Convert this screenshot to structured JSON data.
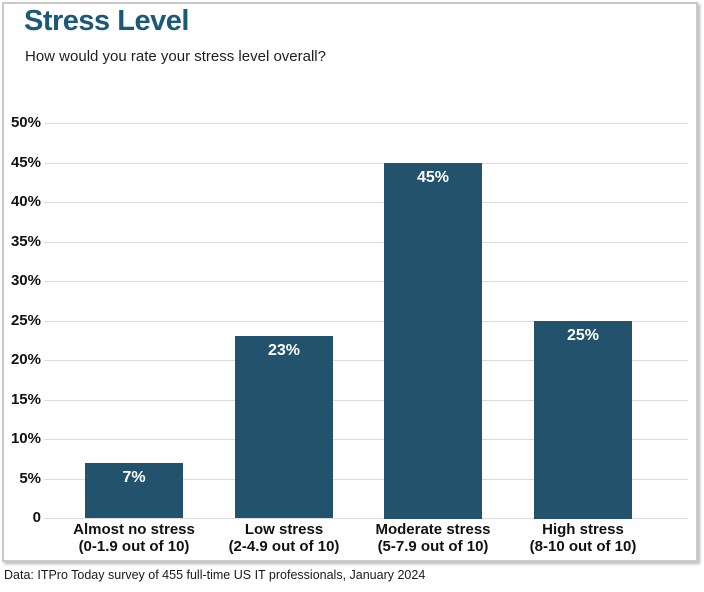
{
  "header": {
    "title": "Stress Level",
    "subtitle": "How would you rate your stress level overall?"
  },
  "footer": {
    "source": "Data: ITPro Today survey of 455 full-time US IT professionals, January 2024"
  },
  "colors": {
    "bar": "#23526D",
    "title": "#1C5878",
    "gridline": "#DCDCDC",
    "axis_text": "#111111",
    "bar_value_text": "#FFFFFF",
    "card_border": "#C9C9C9"
  },
  "chart_data": {
    "type": "bar",
    "title": "Stress Level",
    "subtitle": "How would you rate your stress level overall?",
    "categories": [
      {
        "line1": "Almost no stress",
        "line2": "(0-1.9 out of 10)"
      },
      {
        "line1": "Low stress",
        "line2": "(2-4.9 out of 10)"
      },
      {
        "line1": "Moderate stress",
        "line2": "(5-7.9 out of 10)"
      },
      {
        "line1": "High stress",
        "line2": "(8-10 out of 10)"
      }
    ],
    "values": [
      7,
      23,
      45,
      25
    ],
    "bar_labels": [
      "7%",
      "23%",
      "45%",
      "25%"
    ],
    "ytick_values": [
      50,
      45,
      40,
      35,
      30,
      25,
      20,
      15,
      10,
      5,
      0
    ],
    "ytick_labels": [
      "50%",
      "45%",
      "40%",
      "35%",
      "30%",
      "25%",
      "20%",
      "15%",
      "10%",
      "5%",
      "0"
    ],
    "ylim": [
      0,
      50
    ],
    "ytick_step": 5,
    "grid": true,
    "legend": "none",
    "source": "Data: ITPro Today survey of 455 full-time US IT professionals, January 2024"
  }
}
